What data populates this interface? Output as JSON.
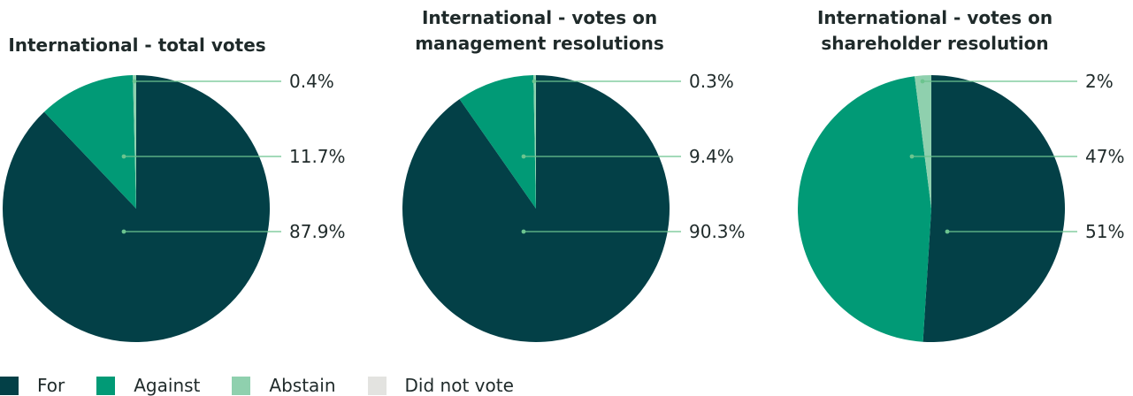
{
  "chart_data": [
    {
      "type": "pie",
      "title": "International - total votes",
      "categories": [
        "For",
        "Against",
        "Abstain"
      ],
      "values": [
        87.9,
        11.7,
        0.4
      ],
      "labels": [
        "87.9%",
        "11.7%",
        "0.4%"
      ]
    },
    {
      "type": "pie",
      "title": "International - votes on management resolutions",
      "title_lines": [
        "International - votes on",
        "management resolutions"
      ],
      "categories": [
        "For",
        "Against",
        "Abstain"
      ],
      "values": [
        90.3,
        9.4,
        0.3
      ],
      "labels": [
        "90.3%",
        "9.4%",
        "0.3%"
      ]
    },
    {
      "type": "pie",
      "title": "International - votes on shareholder resolution",
      "title_lines": [
        "International - votes on",
        "shareholder resolution"
      ],
      "categories": [
        "For",
        "Against",
        "Abstain"
      ],
      "values": [
        51,
        47,
        2
      ],
      "labels": [
        "51%",
        "47%",
        "2%"
      ]
    }
  ],
  "legend": [
    {
      "label": "For",
      "color": "#034047"
    },
    {
      "label": "Against",
      "color": "#019a76"
    },
    {
      "label": "Abstain",
      "color": "#8fd0ae"
    },
    {
      "label": "Did not vote",
      "color": "#e3e3e0"
    }
  ],
  "colors": {
    "for": "#034047",
    "against": "#019a76",
    "abstain": "#8fd0ae",
    "did_not_vote": "#e3e3e0",
    "leader_line": "#6cc48f",
    "label_text": "#1f2a2a"
  }
}
